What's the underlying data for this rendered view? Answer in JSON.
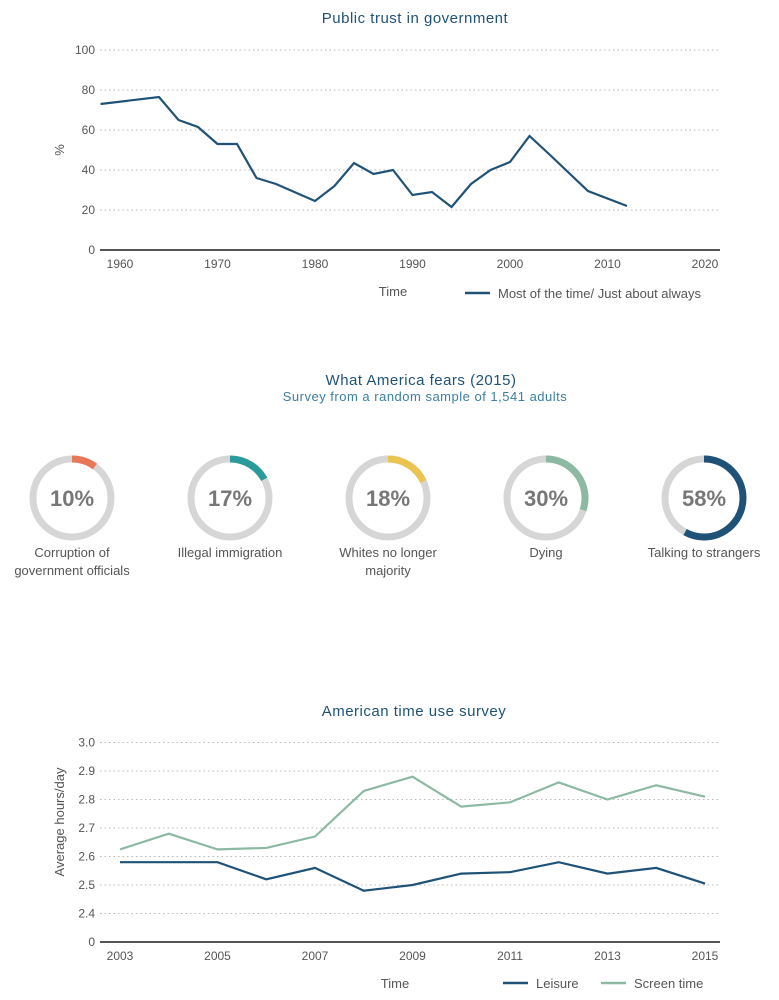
{
  "chart_data": [
    {
      "type": "line",
      "title": "Public trust in government",
      "xlabel": "Time",
      "ylabel": "%",
      "xlim": [
        1960,
        2020
      ],
      "ylim": [
        0,
        100
      ],
      "x_ticks": [
        "1960",
        "1970",
        "1980",
        "1990",
        "2000",
        "2010",
        "2020"
      ],
      "y_ticks": [
        "0",
        "20",
        "40",
        "60",
        "80",
        "100"
      ],
      "grid": true,
      "legend": "bottom-right",
      "series": [
        {
          "name": "Most of the time/ Just about always",
          "color": "#1f5276",
          "x": [
            1958,
            1964,
            1966,
            1968,
            1970,
            1972,
            1974,
            1976,
            1980,
            1982,
            1984,
            1986,
            1988,
            1990,
            1992,
            1994,
            1996,
            1998,
            2000,
            2002,
            2004,
            2008,
            2012
          ],
          "y": [
            73,
            76.5,
            65,
            61.5,
            53,
            53,
            36,
            33,
            24.5,
            32,
            43.5,
            38,
            40,
            27.5,
            29,
            21.5,
            33,
            40,
            44,
            57,
            48,
            29.5,
            22
          ]
        }
      ]
    },
    {
      "type": "pie",
      "title": "What America fears (2015)",
      "subtitle": "Survey from a random sample of 1,541 adults",
      "items": [
        {
          "label": "Corruption of government officials",
          "lines": [
            "Corruption of",
            "government officials"
          ],
          "value": 10,
          "display": "10%",
          "color": "#e8775a"
        },
        {
          "label": "Illegal immigration",
          "lines": [
            "Illegal immigration"
          ],
          "value": 17,
          "display": "17%",
          "color": "#2a9a9a"
        },
        {
          "label": "Whites no longer majority",
          "lines": [
            "Whites no longer",
            "majority"
          ],
          "value": 18,
          "display": "18%",
          "color": "#e9c44e"
        },
        {
          "label": "Dying",
          "lines": [
            "Dying"
          ],
          "value": 30,
          "display": "30%",
          "color": "#8db9a2"
        },
        {
          "label": "Talking to strangers",
          "lines": [
            "Talking to strangers"
          ],
          "value": 58,
          "display": "58%",
          "color": "#1f5276"
        }
      ],
      "track_color": "#d6d6d6"
    },
    {
      "type": "line",
      "title": "American time use survey",
      "xlabel": "Time",
      "ylabel": "Average hours/day",
      "x_ticks": [
        "2003",
        "2005",
        "2007",
        "2009",
        "2011",
        "2013",
        "2015"
      ],
      "y_ticks": [
        "0",
        "2.4",
        "2.5",
        "2.6",
        "2.7",
        "2.8",
        "2.9",
        "3.0"
      ],
      "y_axis_break": true,
      "grid": true,
      "legend": "bottom-right",
      "x": [
        2003,
        2004,
        2005,
        2006,
        2007,
        2008,
        2009,
        2010,
        2011,
        2012,
        2013,
        2014,
        2015
      ],
      "series": [
        {
          "name": "Leisure",
          "color": "#1f5276",
          "values": [
            2.58,
            2.58,
            2.58,
            2.52,
            2.56,
            2.48,
            2.5,
            2.54,
            2.545,
            2.58,
            2.54,
            2.56,
            2.505
          ]
        },
        {
          "name": "Screen time",
          "color": "#8db9a2",
          "values": [
            2.625,
            2.68,
            2.625,
            2.63,
            2.67,
            2.83,
            2.88,
            2.775,
            2.79,
            2.86,
            2.8,
            2.85,
            2.81
          ]
        }
      ]
    }
  ]
}
